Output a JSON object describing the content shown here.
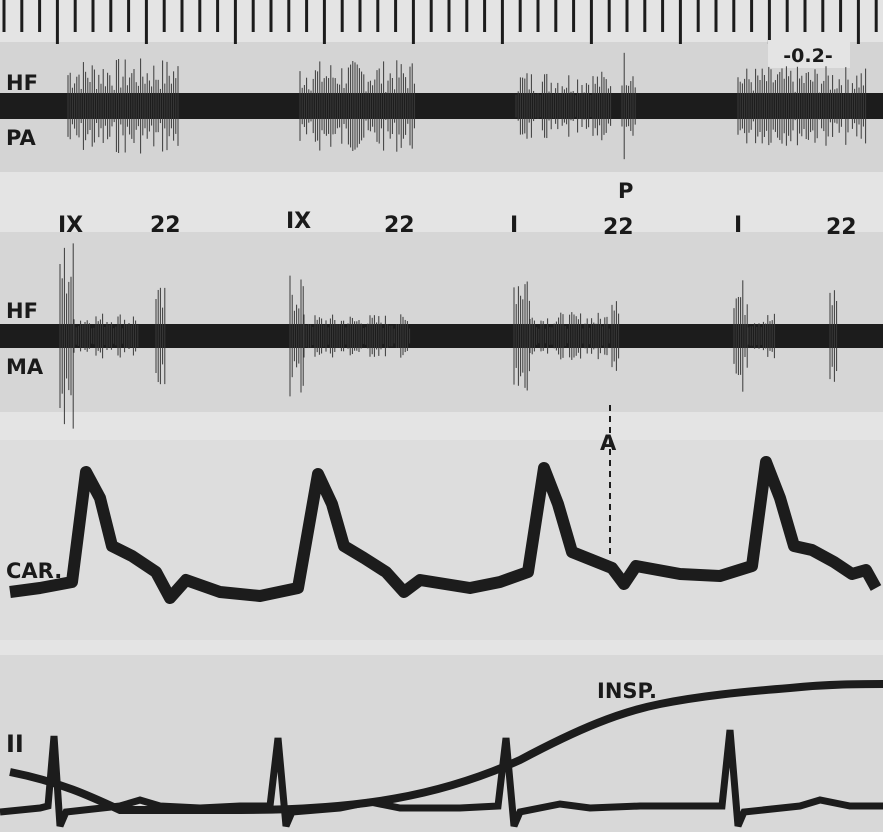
{
  "labels": {
    "time_marker": "-0.2-",
    "hf_pa_top": "HF",
    "hf_pa_bottom": "PA",
    "hf_ma_top": "HF",
    "hf_ma_bottom": "MA",
    "carotid": "CAR.",
    "lead": "II",
    "inspiration": "INSP.",
    "p_marker": "P",
    "a_marker": "A"
  },
  "sound_labels": [
    {
      "first": "IX",
      "second": "22"
    },
    {
      "first": "IX",
      "second": "22"
    },
    {
      "first": "I",
      "second": "22"
    },
    {
      "first": "I",
      "second": "22"
    }
  ],
  "colors": {
    "background": "#e4e4e4",
    "trace": "#1c1c1c",
    "band": "#d2d2d2"
  }
}
